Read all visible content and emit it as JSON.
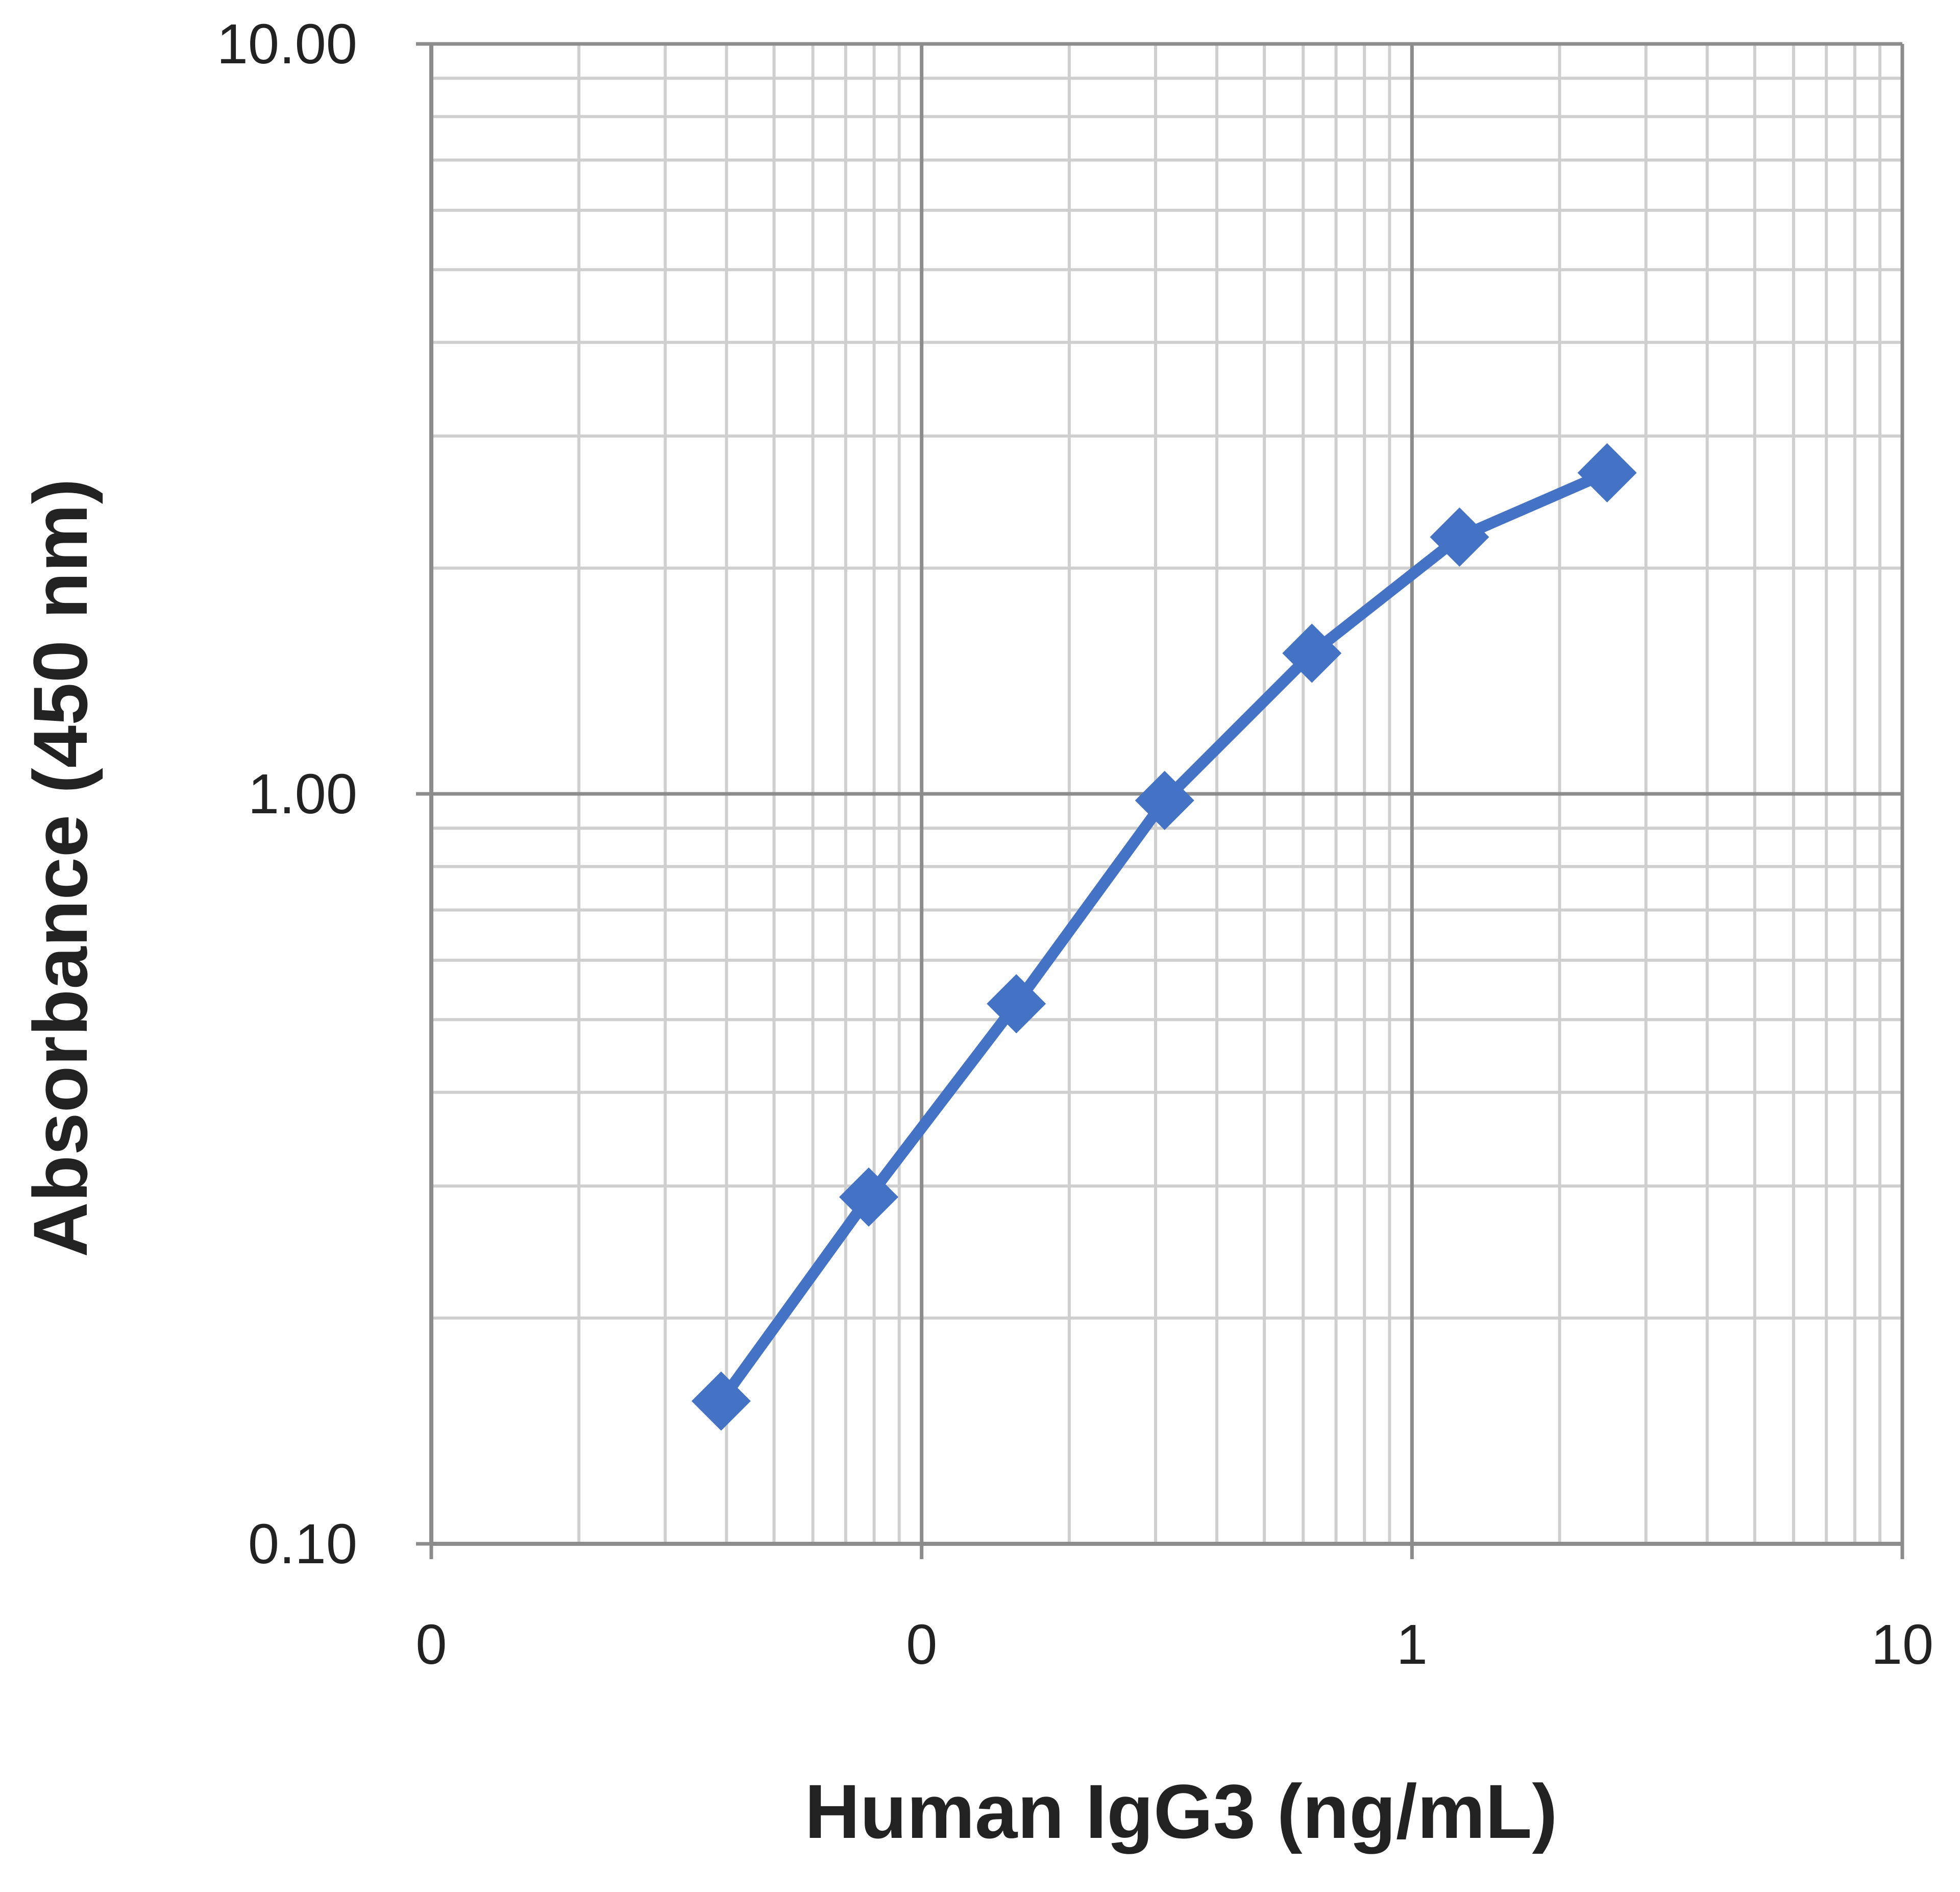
{
  "chart_data": {
    "type": "line",
    "x_label": "Human IgG3 (ng/mL)",
    "y_label": "Absorbance  (450 nm)",
    "x": [
      0.039,
      0.078,
      0.156,
      0.313,
      0.625,
      1.25,
      2.5
    ],
    "series": [
      {
        "color": "#4472c4",
        "marker": "diamond",
        "values": [
          0.155,
          0.29,
          0.525,
          0.98,
          1.54,
          2.2,
          2.68
        ]
      }
    ],
    "xscale": "log",
    "yscale": "log",
    "xlim": [
      0.01,
      10
    ],
    "xticks": [
      {
        "value": 0.01,
        "label": "0"
      },
      {
        "value": 0.1,
        "label": "0"
      },
      1,
      10
    ],
    "ylim": [
      0.1,
      10
    ],
    "yticks": [
      {
        "value": 0.1,
        "label": "0.10"
      },
      {
        "value": 1,
        "label": "1.00"
      },
      {
        "value": 10,
        "label": "10.00"
      }
    ],
    "grid": true,
    "minor_grid": true
  }
}
